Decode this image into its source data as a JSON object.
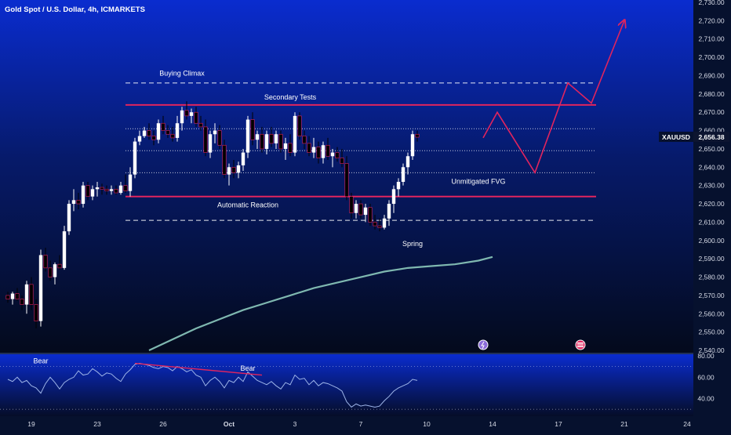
{
  "header": {
    "title": "Gold Spot / U.S. Dollar, 4h, ICMARKETS"
  },
  "colors": {
    "bg_top": "#0a2ccf",
    "bg_bottom": "#040a1c",
    "up": "#ffffff",
    "down": "#000000",
    "down_accent": "#e0245e",
    "level": "#e0245e",
    "dashed": "#ffffff",
    "ma": "#7fb8b0",
    "projection": "#e0245e",
    "rsi": "#9db4e8",
    "rsi_trend": "#e0245e"
  },
  "chart_data": [
    {
      "type": "candlestick",
      "symbol": "XAUUSD",
      "last_price": "2,656.38",
      "ylim": [
        2540,
        2730
      ],
      "y_ticks": [
        "2,730.00",
        "2,720.00",
        "2,710.00",
        "2,700.00",
        "2,690.00",
        "2,680.00",
        "2,670.00",
        "2,660.00",
        "2,650.00",
        "2,640.00",
        "2,630.00",
        "2,620.00",
        "2,610.00",
        "2,600.00",
        "2,590.00",
        "2,580.00",
        "2,570.00",
        "2,560.00",
        "2,550.00",
        "2,540.00"
      ],
      "y_tick_values": [
        2730,
        2720,
        2710,
        2700,
        2690,
        2680,
        2670,
        2660,
        2650,
        2640,
        2630,
        2620,
        2610,
        2600,
        2590,
        2580,
        2570,
        2560,
        2550,
        2540
      ],
      "x_ticks": [
        "19",
        "23",
        "26",
        "Oct",
        "3",
        "7",
        "10",
        "14",
        "17",
        "21",
        "24"
      ],
      "x_tick_bars": [
        5,
        19,
        33,
        47,
        61,
        75,
        89,
        103,
        117,
        131,
        145
      ],
      "candles": [
        [
          2570,
          2572,
          2566,
          2568
        ],
        [
          2568,
          2572,
          2565,
          2571
        ],
        [
          2571,
          2574,
          2567,
          2568
        ],
        [
          2568,
          2570,
          2562,
          2565
        ],
        [
          2565,
          2578,
          2560,
          2576
        ],
        [
          2576,
          2580,
          2562,
          2565
        ],
        [
          2565,
          2568,
          2552,
          2556
        ],
        [
          2556,
          2595,
          2553,
          2592
        ],
        [
          2592,
          2596,
          2583,
          2585
        ],
        [
          2585,
          2589,
          2578,
          2580
        ],
        [
          2580,
          2588,
          2576,
          2587
        ],
        [
          2587,
          2592,
          2584,
          2585
        ],
        [
          2585,
          2608,
          2584,
          2605
        ],
        [
          2605,
          2622,
          2603,
          2620
        ],
        [
          2620,
          2628,
          2616,
          2622
        ],
        [
          2622,
          2626,
          2617,
          2620
        ],
        [
          2620,
          2632,
          2618,
          2630
        ],
        [
          2630,
          2632,
          2622,
          2624
        ],
        [
          2624,
          2630,
          2622,
          2628
        ],
        [
          2628,
          2632,
          2624,
          2629
        ],
        [
          2629,
          2631,
          2625,
          2628
        ],
        [
          2628,
          2630,
          2625,
          2627
        ],
        [
          2627,
          2630,
          2625,
          2628
        ],
        [
          2628,
          2630,
          2625,
          2626
        ],
        [
          2626,
          2632,
          2625,
          2630
        ],
        [
          2630,
          2636,
          2626,
          2627
        ],
        [
          2627,
          2640,
          2624,
          2636
        ],
        [
          2636,
          2656,
          2634,
          2654
        ],
        [
          2654,
          2660,
          2652,
          2657
        ],
        [
          2657,
          2662,
          2656,
          2660
        ],
        [
          2660,
          2664,
          2655,
          2657
        ],
        [
          2657,
          2660,
          2652,
          2655
        ],
        [
          2655,
          2666,
          2653,
          2664
        ],
        [
          2664,
          2668,
          2658,
          2660
        ],
        [
          2660,
          2663,
          2656,
          2658
        ],
        [
          2658,
          2662,
          2654,
          2656
        ],
        [
          2656,
          2668,
          2654,
          2664
        ],
        [
          2664,
          2673,
          2660,
          2671
        ],
        [
          2671,
          2676,
          2666,
          2668
        ],
        [
          2668,
          2672,
          2664,
          2670
        ],
        [
          2670,
          2673,
          2662,
          2664
        ],
        [
          2664,
          2668,
          2660,
          2662
        ],
        [
          2662,
          2666,
          2646,
          2648
        ],
        [
          2648,
          2660,
          2645,
          2658
        ],
        [
          2658,
          2664,
          2653,
          2660
        ],
        [
          2660,
          2663,
          2650,
          2652
        ],
        [
          2652,
          2655,
          2634,
          2636
        ],
        [
          2636,
          2642,
          2630,
          2640
        ],
        [
          2640,
          2644,
          2634,
          2637
        ],
        [
          2637,
          2643,
          2634,
          2641
        ],
        [
          2641,
          2650,
          2638,
          2648
        ],
        [
          2648,
          2668,
          2645,
          2666
        ],
        [
          2666,
          2670,
          2652,
          2655
        ],
        [
          2655,
          2660,
          2650,
          2658
        ],
        [
          2658,
          2662,
          2648,
          2650
        ],
        [
          2650,
          2660,
          2647,
          2658
        ],
        [
          2658,
          2662,
          2651,
          2653
        ],
        [
          2653,
          2660,
          2650,
          2658
        ],
        [
          2658,
          2660,
          2648,
          2650
        ],
        [
          2650,
          2656,
          2644,
          2653
        ],
        [
          2653,
          2658,
          2646,
          2648
        ],
        [
          2648,
          2670,
          2646,
          2668
        ],
        [
          2668,
          2670,
          2655,
          2657
        ],
        [
          2657,
          2660,
          2650,
          2653
        ],
        [
          2653,
          2657,
          2646,
          2648
        ],
        [
          2648,
          2656,
          2645,
          2651
        ],
        [
          2651,
          2654,
          2642,
          2645
        ],
        [
          2645,
          2654,
          2642,
          2652
        ],
        [
          2652,
          2656,
          2644,
          2646
        ],
        [
          2646,
          2650,
          2640,
          2648
        ],
        [
          2648,
          2651,
          2643,
          2645
        ],
        [
          2645,
          2650,
          2640,
          2642
        ],
        [
          2642,
          2646,
          2622,
          2624
        ],
        [
          2624,
          2626,
          2612,
          2615
        ],
        [
          2615,
          2622,
          2612,
          2620
        ],
        [
          2620,
          2622,
          2612,
          2614
        ],
        [
          2614,
          2620,
          2610,
          2618
        ],
        [
          2618,
          2620,
          2608,
          2610
        ],
        [
          2610,
          2614,
          2606,
          2608
        ],
        [
          2608,
          2612,
          2605,
          2607
        ],
        [
          2607,
          2614,
          2606,
          2612
        ],
        [
          2612,
          2622,
          2608,
          2620
        ],
        [
          2620,
          2630,
          2615,
          2628
        ],
        [
          2628,
          2634,
          2624,
          2632
        ],
        [
          2632,
          2642,
          2630,
          2640
        ],
        [
          2640,
          2648,
          2636,
          2646
        ],
        [
          2646,
          2660,
          2644,
          2658
        ],
        [
          2658,
          2660,
          2654,
          2656.38
        ]
      ],
      "moving_average": [
        [
          30,
          2540
        ],
        [
          35,
          2546
        ],
        [
          40,
          2552
        ],
        [
          45,
          2557
        ],
        [
          50,
          2562
        ],
        [
          55,
          2566
        ],
        [
          60,
          2570
        ],
        [
          65,
          2574
        ],
        [
          70,
          2577
        ],
        [
          75,
          2580
        ],
        [
          80,
          2583
        ],
        [
          85,
          2585
        ],
        [
          90,
          2586
        ],
        [
          95,
          2587
        ],
        [
          100,
          2589
        ],
        [
          103,
          2591
        ]
      ],
      "levels": [
        {
          "name": "buying-climax",
          "value": 2686,
          "style": "dashed",
          "from_bar": 25,
          "to_bar": 125,
          "label": "Buying Climax"
        },
        {
          "name": "secondary-tests",
          "value": 2674,
          "style": "solid",
          "from_bar": 25,
          "to_bar": 125,
          "label": "Secondary Tests"
        },
        {
          "name": "dotted-upper",
          "value": 2661,
          "style": "dotted",
          "from_bar": 25,
          "to_bar": 125,
          "label": ""
        },
        {
          "name": "dotted-middle",
          "value": 2649,
          "style": "dotted",
          "from_bar": 25,
          "to_bar": 125,
          "label": ""
        },
        {
          "name": "dotted-lower",
          "value": 2637,
          "style": "dotted",
          "from_bar": 25,
          "to_bar": 125,
          "label": ""
        },
        {
          "name": "automatic-reaction",
          "value": 2624,
          "style": "solid",
          "from_bar": 25,
          "to_bar": 125,
          "label": "Automatic Reaction"
        },
        {
          "name": "spring-level",
          "value": 2611,
          "style": "dashed",
          "from_bar": 25,
          "to_bar": 125,
          "label": ""
        }
      ],
      "annotations": [
        {
          "name": "buying-climax-label",
          "text": "Buying Climax",
          "bar": 37,
          "value": 2690
        },
        {
          "name": "secondary-tests-label",
          "text": "Secondary Tests",
          "bar": 60,
          "value": 2677
        },
        {
          "name": "automatic-reaction-label",
          "text": "Automatic Reaction",
          "bar": 51,
          "value": 2618
        },
        {
          "name": "spring-label",
          "text": "Spring",
          "bar": 86,
          "value": 2597
        },
        {
          "name": "fvg-label",
          "text": "Unmitigated FVG",
          "bar": 100,
          "value": 2631
        }
      ],
      "projection": [
        [
          101,
          2656
        ],
        [
          104,
          2670
        ],
        [
          112,
          2637
        ],
        [
          119,
          2686
        ],
        [
          124,
          2675
        ],
        [
          131,
          2720
        ]
      ]
    },
    {
      "type": "line",
      "name": "rsi",
      "ylim": [
        25,
        80
      ],
      "y_ticks": [
        "80.00",
        "60.00",
        "40.00"
      ],
      "y_tick_values": [
        80,
        60,
        40
      ],
      "top_value": 71,
      "values": [
        58,
        56,
        60,
        55,
        57,
        52,
        50,
        45,
        54,
        60,
        55,
        49,
        55,
        58,
        60,
        66,
        62,
        63,
        68,
        65,
        61,
        64,
        63,
        59,
        56,
        63,
        67,
        72,
        73,
        72,
        71,
        69,
        68,
        70,
        69,
        66,
        70,
        68,
        65,
        67,
        62,
        60,
        52,
        57,
        60,
        56,
        50,
        57,
        55,
        60,
        56,
        65,
        61,
        57,
        55,
        53,
        56,
        52,
        49,
        55,
        53,
        62,
        58,
        59,
        53,
        57,
        52,
        55,
        54,
        52,
        50,
        47,
        37,
        32,
        35,
        33,
        34,
        33,
        32,
        33,
        38,
        42,
        47,
        50,
        52,
        54,
        58,
        57
      ],
      "trendline": [
        [
          27,
          73
        ],
        [
          54,
          62
        ]
      ],
      "annotations": [
        {
          "name": "rsi-bear-left",
          "text": "Bear",
          "bar": 7,
          "value": 73
        },
        {
          "name": "rsi-bear-right",
          "text": "Bear",
          "bar": 51,
          "value": 66
        }
      ]
    }
  ]
}
